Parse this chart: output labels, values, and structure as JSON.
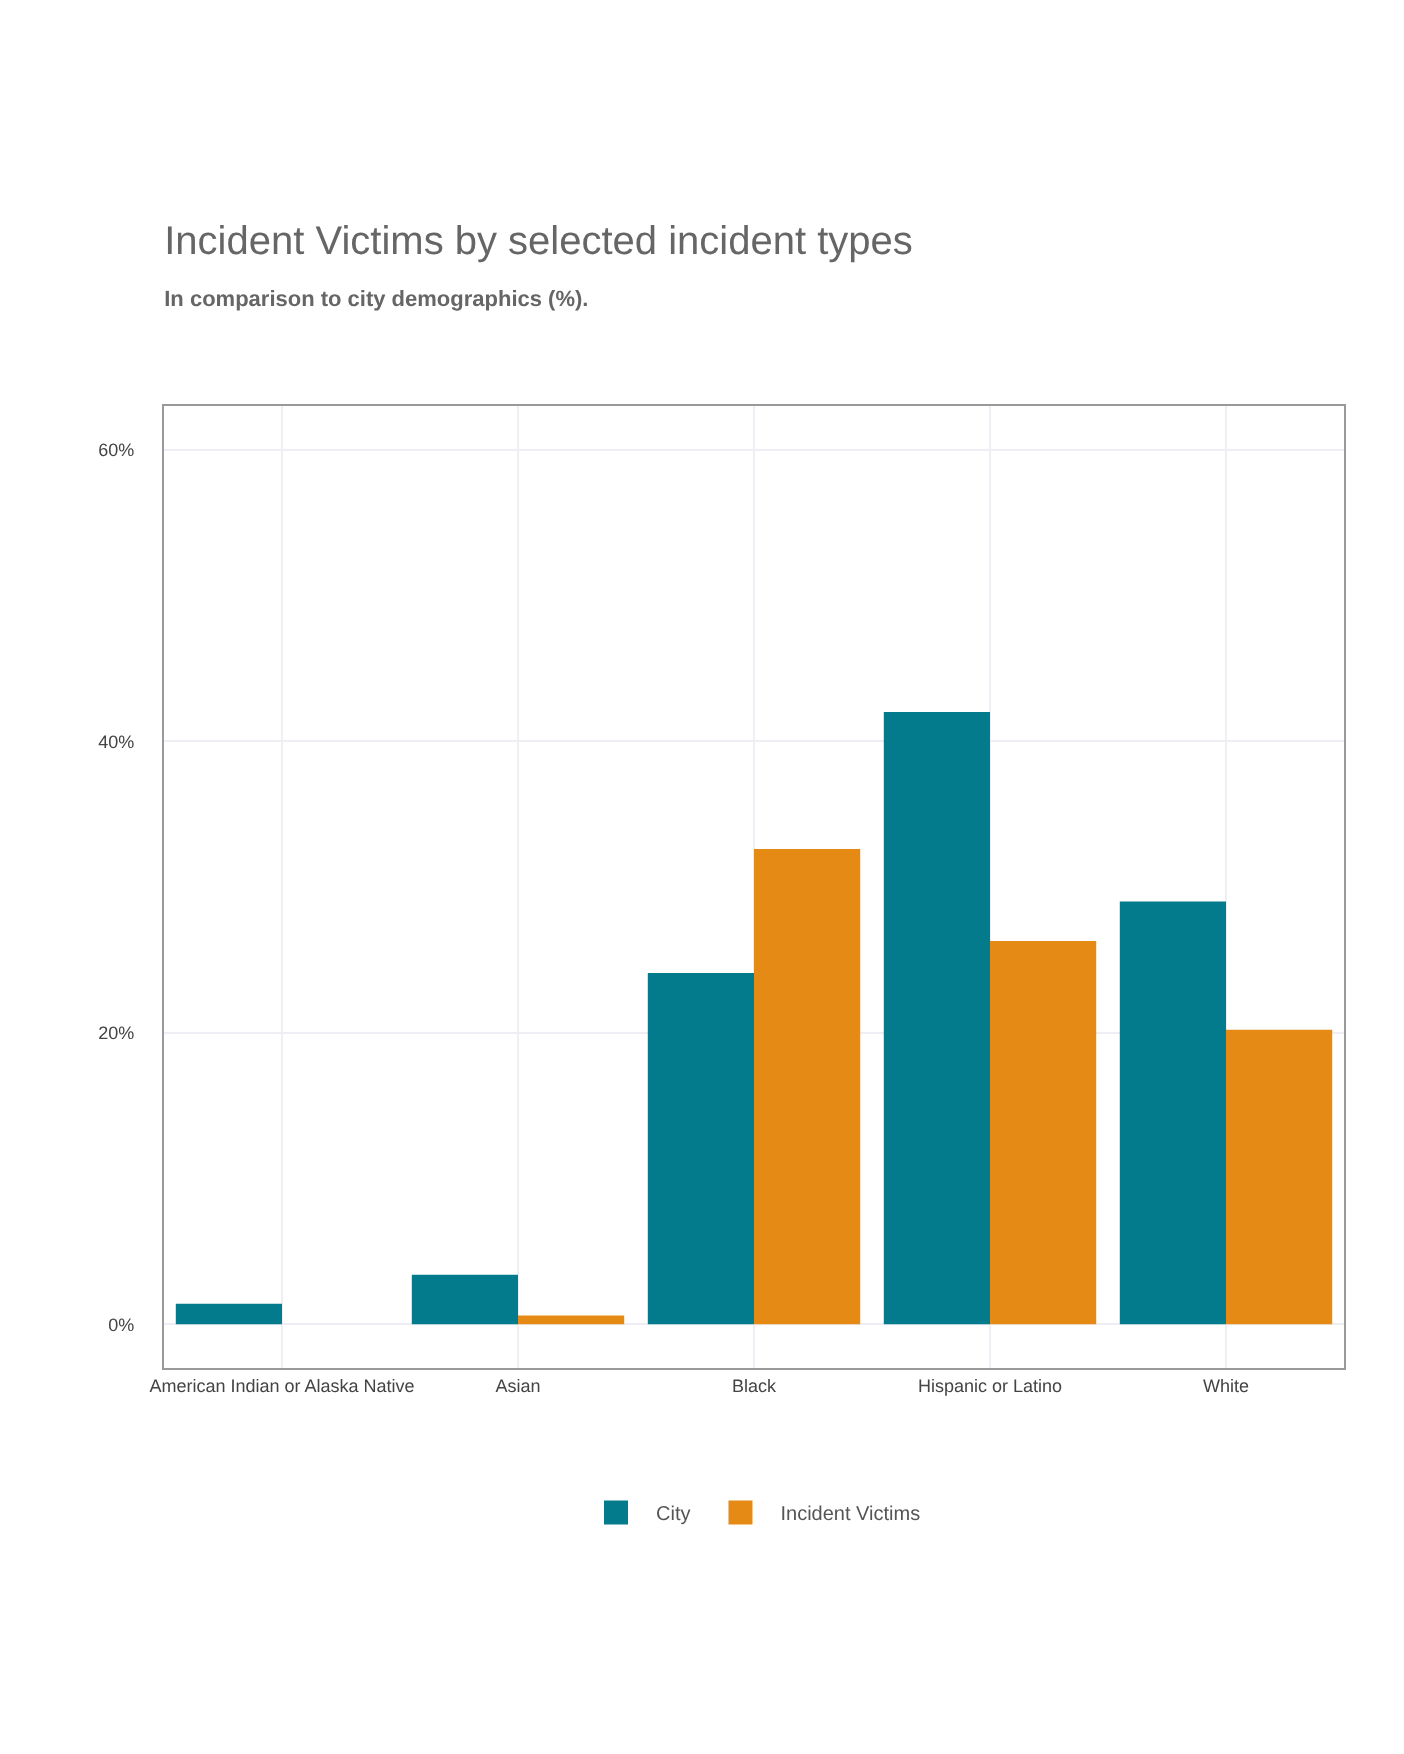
{
  "chart_data": {
    "type": "bar",
    "title": "Incident Victims by selected incident types",
    "subtitle": "In comparison to city demographics (%).",
    "categories": [
      "American Indian or Alaska Native",
      "Asian",
      "Black",
      "Hispanic or Latino",
      "White"
    ],
    "series": [
      {
        "name": "City",
        "color": "#047b8c",
        "values": [
          1.4,
          3.4,
          24.1,
          42.0,
          29.0
        ]
      },
      {
        "name": "Incident Victims",
        "color": "#e68a16",
        "values": [
          0,
          0.6,
          32.6,
          26.3,
          20.2
        ]
      }
    ],
    "ylim": [
      -3,
      63
    ],
    "yticks": [
      {
        "value": 0,
        "label": "0%"
      },
      {
        "value": 20,
        "label": "20%"
      },
      {
        "value": 40,
        "label": "40%"
      },
      {
        "value": 60,
        "label": "60%"
      }
    ],
    "grid": true,
    "legend": "bottom"
  }
}
